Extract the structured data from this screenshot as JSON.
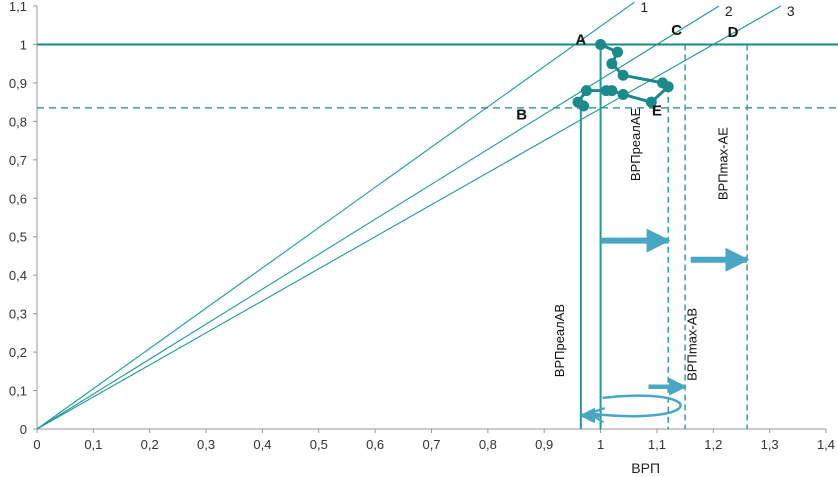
{
  "chart_data": {
    "type": "line",
    "title": "",
    "xlabel": "ВРП",
    "ylabel": "",
    "xlim": [
      0,
      1.4
    ],
    "ylim": [
      0,
      1.1
    ],
    "x_ticks": [
      "0",
      "0,1",
      "0,2",
      "0,3",
      "0,4",
      "0,5",
      "0,6",
      "0,7",
      "0,8",
      "0,9",
      "1",
      "1,1",
      "1,2",
      "1,3",
      "1,4"
    ],
    "y_ticks": [
      "0",
      "0,1",
      "0,2",
      "0,3",
      "0,4",
      "0,5",
      "0,6",
      "0,7",
      "0,8",
      "0,9",
      "1",
      "1,1"
    ],
    "grid": false,
    "rays": [
      {
        "label": "1",
        "x": [
          0,
          1.06
        ],
        "y": [
          0,
          1.11
        ]
      },
      {
        "label": "2",
        "x": [
          0,
          1.21
        ],
        "y": [
          0,
          1.1
        ]
      },
      {
        "label": "3",
        "x": [
          0,
          1.32
        ],
        "y": [
          0,
          1.1
        ]
      }
    ],
    "hlines": [
      {
        "y": 1.0,
        "style": "solid"
      },
      {
        "y": 0.835,
        "style": "dashed"
      }
    ],
    "vlines": [
      {
        "x": 0.965,
        "y_top": 0.835,
        "style": "solid",
        "label": "ВРПреалАВ"
      },
      {
        "x": 1.0,
        "y_top": 1.0,
        "style": "solid",
        "label": ""
      },
      {
        "x": 1.12,
        "y_top": 0.89,
        "style": "dashed",
        "label": "ВРПреалАЕ"
      },
      {
        "x": 1.15,
        "y_top": 1.0,
        "style": "dashed",
        "label": "ВРПmax-АВ"
      },
      {
        "x": 1.26,
        "y_top": 1.0,
        "style": "dashed",
        "label": "ВРПmax-АЕ"
      }
    ],
    "vertical_labels": [
      {
        "text": "ВРПреалАВ",
        "x": 0.935,
        "y": 0.23
      },
      {
        "text": "ВРПреалАЕ",
        "x": 1.07,
        "y": 0.74
      },
      {
        "text": "ВРПmax-АВ",
        "x": 1.17,
        "y": 0.22
      },
      {
        "text": "ВРПmax-АЕ",
        "x": 1.225,
        "y": 0.69
      }
    ],
    "point_labels": [
      {
        "text": "A",
        "x": 0.965,
        "y": 1.0
      },
      {
        "text": "B",
        "x": 0.86,
        "y": 0.805
      },
      {
        "text": "C",
        "x": 1.135,
        "y": 1.025
      },
      {
        "text": "D",
        "x": 1.235,
        "y": 1.02
      },
      {
        "text": "E",
        "x": 1.1,
        "y": 0.815
      }
    ],
    "trajectory": {
      "x": [
        1.0,
        1.03,
        1.02,
        1.04,
        1.11,
        1.12,
        1.09,
        1.04,
        1.02,
        1.01,
        0.975,
        0.96,
        0.97
      ],
      "y": [
        1.0,
        0.98,
        0.95,
        0.92,
        0.9,
        0.89,
        0.85,
        0.87,
        0.88,
        0.88,
        0.88,
        0.85,
        0.84
      ]
    },
    "arrows": [
      {
        "x0": 1.0,
        "x1": 1.12,
        "y": 0.49
      },
      {
        "x0": 1.16,
        "x1": 1.26,
        "y": 0.44
      },
      {
        "x0": 1.085,
        "x1": 1.15,
        "y": 0.11
      },
      {
        "x0": 1.0,
        "x1": 0.965,
        "y": 0.035
      }
    ],
    "colors": {
      "teal": "#1e9a9a",
      "dark_teal": "#1a8a8a",
      "arrow": "#49a7c4",
      "axis": "#999999"
    }
  }
}
